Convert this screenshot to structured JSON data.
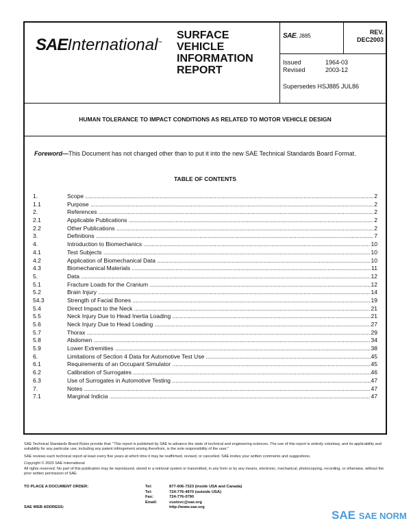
{
  "header": {
    "logo_text": "SAE International",
    "report_type": [
      "SURFACE",
      "VEHICLE",
      "INFORMATION",
      "REPORT"
    ],
    "doc_prefix": "SAE",
    "doc_number": "J885",
    "rev_label": "REV.",
    "rev_value": "DEC2003",
    "issued_label": "Issued",
    "issued_value": "1964-03",
    "revised_label": "Revised",
    "revised_value": "2003-12",
    "supersedes": "Supersedes HSJ885 JUL86"
  },
  "title": "HUMAN TOLERANCE TO IMPACT CONDITIONS AS RELATED TO MOTOR VEHICLE DESIGN",
  "foreword": {
    "label": "Foreword—",
    "text": "This Document has not changed other than to put it into the new SAE Technical Standards Board Format."
  },
  "toc": {
    "heading": "TABLE OF CONTENTS",
    "entries": [
      {
        "num": "1.",
        "title": "Scope",
        "page": "2"
      },
      {
        "num": "1.1",
        "title": "Purpose",
        "page": "2"
      },
      {
        "num": "2.",
        "title": "References",
        "page": "2"
      },
      {
        "num": "2.1",
        "title": "Applicable Publications",
        "page": "2"
      },
      {
        "num": "2.2",
        "title": "Other Publications",
        "page": "2"
      },
      {
        "num": "3.",
        "title": "Definitions",
        "page": "7"
      },
      {
        "num": "4.",
        "title": "Introduction to Biomechanics",
        "page": "10"
      },
      {
        "num": "4.1",
        "title": "Test Subjects",
        "page": "10"
      },
      {
        "num": "4.2",
        "title": "Application of Biomechanical Data",
        "page": "10"
      },
      {
        "num": "4.3",
        "title": "Biomechanical Materials",
        "page": "11"
      },
      {
        "num": "5.",
        "title": "Data",
        "page": "12"
      },
      {
        "num": "5.1",
        "title": "Fracture Loads for the Cranium",
        "page": "12"
      },
      {
        "num": "5.2",
        "title": "Brain Injury",
        "page": "14"
      },
      {
        "num": "54.3",
        "title": "Strength of Facial Bones",
        "page": "19"
      },
      {
        "num": "5.4",
        "title": "Direct Impact to the Neck",
        "page": "21"
      },
      {
        "num": "5.5",
        "title": "Neck Injury Due to Head Inertia Loading",
        "page": "21"
      },
      {
        "num": "5.6",
        "title": "Neck Injury Due to Head Loading",
        "page": "27"
      },
      {
        "num": "5.7",
        "title": "Thorax",
        "page": "29"
      },
      {
        "num": "5.8",
        "title": "Abdomen",
        "page": "34"
      },
      {
        "num": "5.9",
        "title": "Lower Extremities",
        "page": "38"
      },
      {
        "num": "6.",
        "title": "Limitations of Section 4 Data for Automotive Test Use",
        "page": "45"
      },
      {
        "num": "6.1",
        "title": "Requirements of an Occupant Simulator",
        "page": "45"
      },
      {
        "num": "6.2",
        "title": "Calibration of Surrogates",
        "page": "46"
      },
      {
        "num": "6.3",
        "title": "Use of Surrogates in Automotive Testing",
        "page": "47"
      },
      {
        "num": "7.",
        "title": "Notes",
        "page": "47"
      },
      {
        "num": "7.1",
        "title": "Marginal Indicia",
        "page": "47"
      }
    ]
  },
  "footer": {
    "rules": "SAE Technical Standards Board Rules provide that: \"This report is published by SAE to advance the state of technical and engineering sciences. The use of this report is entirely voluntary, and its applicability and suitability for any particular use, including any patent infringement arising therefrom, is the sole responsibility of the user.\"",
    "review": "SAE reviews each technical report at least every five years at which time it may be reaffirmed, revised, or cancelled. SAE invites your written comments and suggestions.",
    "copyright": "Copyright © 2003 SAE International",
    "rights": "All rights reserved. No part of this publication may be reproduced, stored in a retrieval system or transmitted, in any form or by any means, electronic, mechanical, photocopying, recording, or otherwise, without the prior written permission of SAE.",
    "order_label": "TO PLACE A DOCUMENT ORDER:",
    "web_label": "SAE WEB ADDRESS:",
    "contacts": [
      {
        "label": "Tel:",
        "value": "877-606-7323 (inside USA and Canada)"
      },
      {
        "label": "Tel:",
        "value": "724-776-4970 (outside USA)"
      },
      {
        "label": "Fax:",
        "value": "724-776-0790"
      },
      {
        "label": "Email:",
        "value": "custsvc@sae.org"
      },
      {
        "label": "",
        "value": "http://www.sae.org"
      }
    ]
  },
  "watermark": {
    "logo": "SAE",
    "text": "SAE NORM",
    "accent": "#4a9bd8"
  }
}
